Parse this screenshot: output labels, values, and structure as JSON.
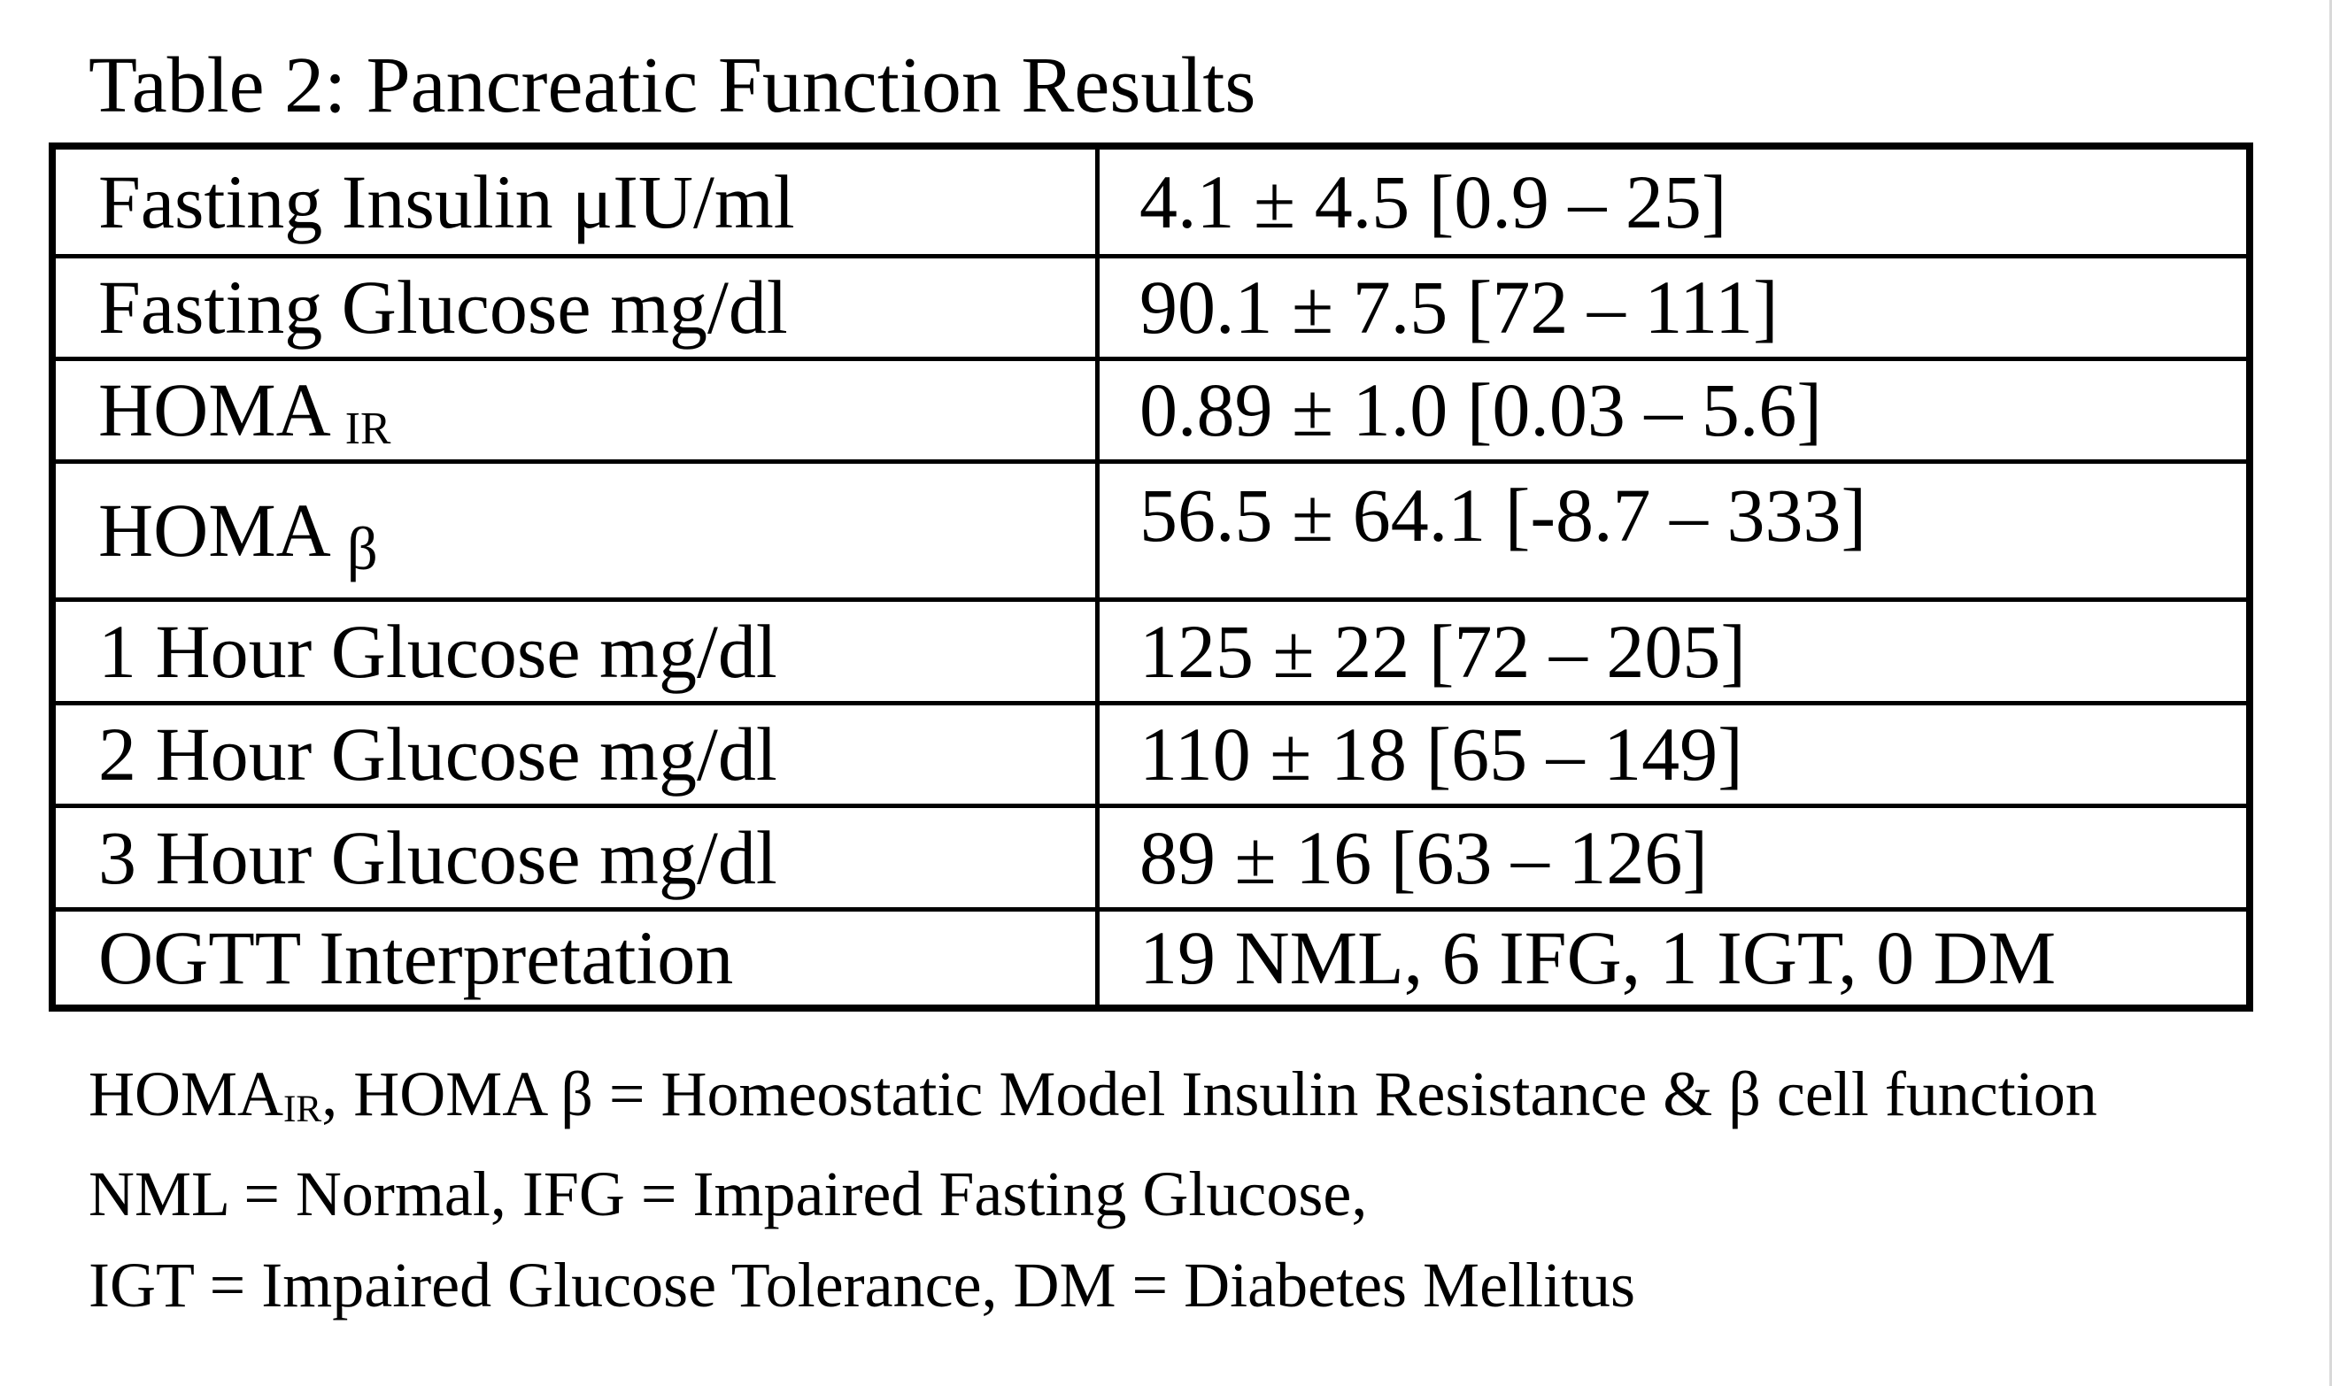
{
  "title": "Table 2: Pancreatic Function Results",
  "table": {
    "rows": [
      {
        "label": "Fasting Insulin μIU/ml",
        "value": "4.1 ± 4.5 [0.9 – 25]"
      },
      {
        "label": "Fasting Glucose mg/dl",
        "value": "90.1 ± 7.5 [72 – 111]"
      },
      {
        "label_base": "HOMA",
        "label_sub": "IR",
        "value": "0.89 ± 1.0 [0.03 – 5.6]"
      },
      {
        "label_base": "HOMA",
        "label_sub": "β",
        "value": "56.5 ± 64.1 [-8.7 – 333]"
      },
      {
        "label": "1 Hour Glucose mg/dl",
        "value": "125 ± 22 [72 – 205]"
      },
      {
        "label": "2 Hour Glucose mg/dl",
        "value": "110 ± 18 [65 – 149]"
      },
      {
        "label": "3 Hour Glucose mg/dl",
        "value": "89 ± 16 [63 – 126]"
      },
      {
        "label": "OGTT Interpretation",
        "value": "19 NML, 6 IFG, 1 IGT, 0 DM"
      }
    ]
  },
  "footnotes": {
    "line1_base": "HOMA",
    "line1_sub": "IR",
    "line1_rest": ", HOMA β = Homeostatic Model Insulin Resistance & β cell function",
    "line2": "NML = Normal, IFG = Impaired Fasting Glucose,",
    "line3": "IGT = Impaired Glucose Tolerance, DM = Diabetes Mellitus"
  },
  "colors": {
    "border": "#000000",
    "background": "#ffffff",
    "page_edge_line": "#d9d9d9"
  }
}
